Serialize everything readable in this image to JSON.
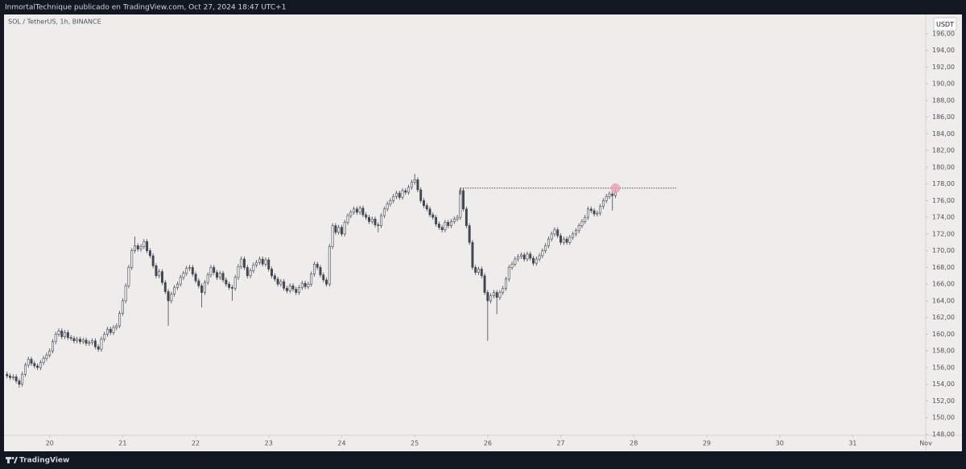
{
  "header": {
    "title": "InmortalTechnique publicado en TradingView.com, Oct 27, 2024 18:47 UTC+1"
  },
  "footer": {
    "brand": "TradingView"
  },
  "chart_data": {
    "type": "candlestick",
    "title": "SOL / TetherUS, 1h, BINANCE",
    "currency": "USDT",
    "up_color": "#f4f4f4",
    "down_color": "#434651",
    "outline_color": "#434651",
    "xlim": [
      -1,
      302
    ],
    "ylim": [
      147.9,
      198.3
    ],
    "xticks": [
      {
        "value": 14,
        "label": "20"
      },
      {
        "value": 38,
        "label": "21"
      },
      {
        "value": 62,
        "label": "22"
      },
      {
        "value": 86,
        "label": "23"
      },
      {
        "value": 110,
        "label": "24"
      },
      {
        "value": 134,
        "label": "25"
      },
      {
        "value": 158,
        "label": "26"
      },
      {
        "value": 182,
        "label": "27"
      },
      {
        "value": 206,
        "label": "28"
      },
      {
        "value": 230,
        "label": "29"
      },
      {
        "value": 254,
        "label": "30"
      },
      {
        "value": 278,
        "label": "31"
      },
      {
        "value": 302,
        "label": "Nov"
      }
    ],
    "yticks": [
      {
        "value": 148,
        "label": "148,00"
      },
      {
        "value": 150,
        "label": "150,00"
      },
      {
        "value": 152,
        "label": "152,00"
      },
      {
        "value": 154,
        "label": "154,00"
      },
      {
        "value": 156,
        "label": "156,00"
      },
      {
        "value": 158,
        "label": "158,00"
      },
      {
        "value": 160,
        "label": "160,00"
      },
      {
        "value": 162,
        "label": "162,00"
      },
      {
        "value": 164,
        "label": "164,00"
      },
      {
        "value": 166,
        "label": "166,00"
      },
      {
        "value": 168,
        "label": "168,00"
      },
      {
        "value": 170,
        "label": "170,00"
      },
      {
        "value": 172,
        "label": "172,00"
      },
      {
        "value": 174,
        "label": "174,00"
      },
      {
        "value": 176,
        "label": "176,00"
      },
      {
        "value": 178,
        "label": "178,00"
      },
      {
        "value": 180,
        "label": "180,00"
      },
      {
        "value": 182,
        "label": "182,00"
      },
      {
        "value": 184,
        "label": "184,00"
      },
      {
        "value": 186,
        "label": "186,00"
      },
      {
        "value": 188,
        "label": "188,00"
      },
      {
        "value": 190,
        "label": "190,00"
      },
      {
        "value": 192,
        "label": "192,00"
      },
      {
        "value": 194,
        "label": "194,00"
      },
      {
        "value": 196,
        "label": "196,00"
      }
    ],
    "hline": {
      "y": 177.5,
      "x": [
        149,
        220
      ],
      "color": "#131722"
    },
    "marker": {
      "x": 200,
      "y": 177.5,
      "color": "#e8a0b4"
    },
    "candles": [
      [
        155.2,
        155.5,
        154.7,
        155.0
      ],
      [
        155.0,
        155.3,
        154.5,
        154.8
      ],
      [
        154.8,
        155.2,
        154.5,
        154.9
      ],
      [
        154.9,
        155.2,
        154.1,
        154.4
      ],
      [
        154.4,
        154.7,
        153.6,
        154.0
      ],
      [
        154.0,
        155.5,
        153.7,
        155.2
      ],
      [
        155.2,
        156.6,
        154.9,
        156.3
      ],
      [
        156.3,
        157.3,
        156.0,
        157.0
      ],
      [
        157.0,
        157.3,
        156.2,
        156.5
      ],
      [
        156.5,
        156.8,
        155.9,
        156.2
      ],
      [
        156.2,
        156.5,
        155.7,
        156.0
      ],
      [
        156.0,
        156.9,
        155.7,
        156.6
      ],
      [
        156.6,
        157.4,
        156.3,
        157.1
      ],
      [
        157.1,
        157.8,
        156.8,
        157.5
      ],
      [
        157.5,
        158.3,
        157.2,
        158.0
      ],
      [
        158.0,
        159.4,
        157.7,
        159.1
      ],
      [
        159.1,
        160.3,
        158.8,
        160.0
      ],
      [
        160.0,
        160.7,
        159.7,
        160.4
      ],
      [
        160.4,
        160.7,
        159.4,
        159.7
      ],
      [
        159.7,
        160.5,
        159.4,
        160.2
      ],
      [
        160.2,
        160.5,
        159.3,
        159.6
      ],
      [
        159.6,
        159.9,
        159.2,
        159.5
      ],
      [
        159.5,
        159.8,
        158.9,
        159.2
      ],
      [
        159.2,
        159.7,
        158.9,
        159.4
      ],
      [
        159.4,
        159.7,
        158.8,
        159.1
      ],
      [
        159.1,
        159.6,
        158.8,
        159.3
      ],
      [
        159.3,
        159.6,
        158.6,
        158.9
      ],
      [
        158.9,
        159.3,
        158.6,
        159.0
      ],
      [
        159.0,
        159.5,
        158.7,
        159.2
      ],
      [
        159.2,
        159.5,
        158.2,
        158.5
      ],
      [
        158.5,
        158.8,
        157.9,
        158.2
      ],
      [
        158.2,
        159.7,
        157.9,
        159.4
      ],
      [
        159.4,
        160.3,
        159.1,
        160.0
      ],
      [
        160.0,
        160.9,
        159.7,
        160.6
      ],
      [
        160.6,
        160.9,
        159.9,
        160.2
      ],
      [
        160.2,
        161.1,
        159.9,
        160.8
      ],
      [
        160.8,
        161.3,
        160.5,
        161.0
      ],
      [
        161.0,
        162.8,
        160.7,
        162.5
      ],
      [
        162.5,
        164.3,
        162.2,
        164.0
      ],
      [
        164.0,
        166.1,
        163.7,
        165.8
      ],
      [
        165.8,
        168.3,
        165.5,
        168.0
      ],
      [
        168.0,
        170.3,
        167.7,
        170.0
      ],
      [
        170.0,
        171.7,
        169.7,
        170.6
      ],
      [
        170.6,
        170.9,
        169.9,
        170.2
      ],
      [
        170.2,
        170.8,
        169.9,
        170.5
      ],
      [
        170.5,
        171.4,
        170.2,
        171.1
      ],
      [
        171.1,
        171.4,
        169.7,
        170.0
      ],
      [
        170.0,
        170.3,
        169.1,
        169.4
      ],
      [
        169.4,
        169.7,
        167.9,
        168.2
      ],
      [
        168.2,
        168.5,
        166.7,
        167.0
      ],
      [
        167.0,
        167.8,
        166.7,
        167.5
      ],
      [
        167.5,
        167.8,
        165.9,
        166.2
      ],
      [
        166.2,
        166.5,
        164.8,
        165.1
      ],
      [
        165.1,
        165.4,
        161.0,
        164.0
      ],
      [
        164.0,
        165.1,
        163.7,
        164.8
      ],
      [
        164.8,
        165.9,
        164.5,
        165.6
      ],
      [
        165.6,
        166.3,
        165.3,
        166.0
      ],
      [
        166.0,
        167.1,
        165.7,
        166.8
      ],
      [
        166.8,
        167.6,
        166.5,
        167.3
      ],
      [
        167.3,
        168.2,
        167.0,
        167.9
      ],
      [
        167.9,
        168.3,
        167.6,
        168.0
      ],
      [
        168.0,
        168.3,
        166.9,
        167.2
      ],
      [
        167.2,
        167.5,
        166.1,
        166.4
      ],
      [
        166.4,
        166.7,
        165.5,
        165.8
      ],
      [
        165.8,
        166.1,
        163.2,
        165.0
      ],
      [
        165.0,
        166.5,
        164.7,
        166.2
      ],
      [
        166.2,
        167.4,
        165.9,
        167.1
      ],
      [
        167.1,
        168.3,
        166.8,
        168.0
      ],
      [
        168.0,
        168.3,
        167.1,
        167.4
      ],
      [
        167.4,
        167.7,
        166.5,
        166.8
      ],
      [
        166.8,
        167.6,
        166.5,
        167.3
      ],
      [
        167.3,
        167.6,
        166.2,
        166.5
      ],
      [
        166.5,
        166.8,
        165.7,
        166.0
      ],
      [
        166.0,
        166.3,
        165.3,
        165.6
      ],
      [
        165.6,
        165.9,
        164.0,
        165.5
      ],
      [
        165.5,
        167.1,
        165.2,
        166.8
      ],
      [
        166.8,
        168.4,
        166.5,
        168.1
      ],
      [
        168.1,
        169.3,
        167.8,
        169.0
      ],
      [
        169.0,
        169.3,
        167.7,
        168.0
      ],
      [
        168.0,
        168.3,
        166.7,
        167.0
      ],
      [
        167.0,
        167.9,
        166.7,
        167.6
      ],
      [
        167.6,
        168.6,
        167.3,
        168.3
      ],
      [
        168.3,
        168.9,
        168.0,
        168.6
      ],
      [
        168.6,
        169.3,
        168.3,
        169.0
      ],
      [
        169.0,
        169.3,
        168.1,
        168.4
      ],
      [
        168.4,
        169.2,
        168.1,
        168.9
      ],
      [
        168.9,
        169.2,
        167.5,
        167.8
      ],
      [
        167.8,
        168.1,
        166.7,
        167.0
      ],
      [
        167.0,
        167.3,
        166.3,
        166.6
      ],
      [
        166.6,
        166.9,
        165.7,
        166.0
      ],
      [
        166.0,
        166.6,
        165.7,
        166.3
      ],
      [
        166.3,
        166.6,
        165.2,
        165.5
      ],
      [
        165.5,
        165.8,
        164.9,
        165.2
      ],
      [
        165.2,
        166.1,
        164.9,
        165.8
      ],
      [
        165.8,
        166.1,
        165.1,
        165.4
      ],
      [
        165.4,
        165.7,
        164.7,
        165.0
      ],
      [
        165.0,
        165.9,
        164.7,
        165.6
      ],
      [
        165.6,
        166.4,
        165.3,
        166.1
      ],
      [
        166.1,
        166.4,
        165.4,
        165.7
      ],
      [
        165.7,
        166.3,
        165.4,
        166.0
      ],
      [
        166.0,
        167.5,
        165.7,
        167.2
      ],
      [
        167.2,
        168.7,
        166.9,
        168.4
      ],
      [
        168.4,
        168.7,
        167.7,
        168.0
      ],
      [
        168.0,
        168.3,
        166.8,
        167.1
      ],
      [
        167.1,
        167.4,
        166.2,
        166.5
      ],
      [
        166.5,
        166.8,
        165.7,
        166.0
      ],
      [
        166.0,
        170.8,
        165.7,
        170.5
      ],
      [
        170.5,
        173.3,
        170.2,
        173.0
      ],
      [
        173.0,
        173.3,
        171.9,
        172.2
      ],
      [
        172.2,
        173.1,
        171.9,
        172.8
      ],
      [
        172.8,
        173.1,
        171.7,
        172.0
      ],
      [
        172.0,
        173.7,
        171.7,
        173.4
      ],
      [
        173.4,
        174.5,
        173.1,
        174.2
      ],
      [
        174.2,
        174.9,
        173.9,
        174.6
      ],
      [
        174.6,
        175.3,
        174.3,
        175.0
      ],
      [
        175.0,
        175.3,
        174.3,
        174.6
      ],
      [
        174.6,
        175.4,
        174.3,
        175.1
      ],
      [
        175.1,
        175.4,
        174.0,
        174.3
      ],
      [
        174.3,
        174.6,
        173.7,
        174.0
      ],
      [
        174.0,
        174.3,
        173.2,
        173.5
      ],
      [
        173.5,
        174.1,
        173.2,
        173.8
      ],
      [
        173.8,
        174.1,
        172.8,
        173.1
      ],
      [
        173.1,
        173.4,
        172.2,
        173.0
      ],
      [
        173.0,
        174.5,
        172.7,
        174.2
      ],
      [
        174.2,
        175.3,
        173.9,
        175.0
      ],
      [
        175.0,
        175.9,
        174.7,
        175.6
      ],
      [
        175.6,
        176.3,
        175.3,
        176.0
      ],
      [
        176.0,
        176.8,
        175.7,
        176.5
      ],
      [
        176.5,
        177.2,
        176.2,
        176.9
      ],
      [
        176.9,
        177.2,
        176.1,
        176.4
      ],
      [
        176.4,
        177.5,
        176.1,
        177.2
      ],
      [
        177.2,
        177.5,
        176.7,
        177.0
      ],
      [
        177.0,
        177.9,
        176.7,
        177.6
      ],
      [
        177.6,
        178.5,
        177.3,
        178.2
      ],
      [
        178.2,
        179.2,
        177.9,
        178.5
      ],
      [
        178.5,
        178.8,
        177.0,
        177.3
      ],
      [
        177.3,
        177.6,
        175.7,
        176.0
      ],
      [
        176.0,
        176.3,
        175.1,
        175.4
      ],
      [
        175.4,
        175.7,
        174.7,
        175.0
      ],
      [
        175.0,
        175.3,
        174.0,
        174.3
      ],
      [
        174.3,
        174.6,
        173.7,
        174.0
      ],
      [
        174.0,
        174.3,
        172.9,
        173.2
      ],
      [
        173.2,
        173.5,
        172.5,
        172.8
      ],
      [
        172.8,
        173.1,
        172.2,
        172.5
      ],
      [
        172.5,
        173.7,
        172.2,
        173.4
      ],
      [
        173.4,
        173.7,
        172.7,
        173.0
      ],
      [
        173.0,
        173.8,
        172.7,
        173.5
      ],
      [
        173.5,
        174.1,
        173.2,
        173.8
      ],
      [
        173.8,
        174.3,
        173.5,
        174.0
      ],
      [
        174.0,
        177.5,
        173.7,
        177.2
      ],
      [
        177.2,
        177.5,
        174.7,
        175.0
      ],
      [
        175.0,
        175.3,
        172.7,
        173.0
      ],
      [
        173.0,
        173.3,
        170.7,
        171.0
      ],
      [
        171.0,
        171.3,
        167.7,
        168.0
      ],
      [
        168.0,
        168.3,
        167.1,
        167.4
      ],
      [
        167.4,
        168.1,
        167.1,
        167.8
      ],
      [
        167.8,
        168.1,
        166.7,
        167.0
      ],
      [
        167.0,
        167.3,
        164.7,
        165.0
      ],
      [
        165.0,
        165.3,
        159.2,
        164.0
      ],
      [
        164.0,
        164.9,
        163.7,
        164.6
      ],
      [
        164.6,
        165.3,
        164.3,
        165.0
      ],
      [
        165.0,
        165.3,
        162.4,
        164.4
      ],
      [
        164.4,
        165.3,
        164.1,
        165.0
      ],
      [
        165.0,
        165.8,
        164.7,
        165.5
      ],
      [
        165.5,
        166.9,
        165.2,
        166.6
      ],
      [
        166.6,
        168.3,
        166.3,
        168.0
      ],
      [
        168.0,
        168.7,
        167.7,
        168.4
      ],
      [
        168.4,
        169.3,
        168.1,
        169.0
      ],
      [
        169.0,
        169.6,
        168.7,
        169.3
      ],
      [
        169.3,
        169.8,
        169.0,
        169.5
      ],
      [
        169.5,
        169.8,
        168.7,
        169.0
      ],
      [
        169.0,
        169.9,
        168.7,
        169.6
      ],
      [
        169.6,
        169.9,
        168.8,
        169.1
      ],
      [
        169.1,
        169.4,
        168.2,
        168.5
      ],
      [
        168.5,
        169.3,
        168.2,
        169.0
      ],
      [
        169.0,
        169.7,
        168.7,
        169.4
      ],
      [
        169.4,
        170.3,
        169.1,
        170.0
      ],
      [
        170.0,
        170.9,
        169.7,
        170.6
      ],
      [
        170.6,
        171.7,
        170.3,
        171.4
      ],
      [
        171.4,
        172.3,
        171.1,
        172.0
      ],
      [
        172.0,
        172.8,
        171.7,
        172.5
      ],
      [
        172.5,
        172.8,
        171.5,
        171.8
      ],
      [
        171.8,
        172.1,
        170.7,
        171.0
      ],
      [
        171.0,
        171.7,
        170.7,
        171.4
      ],
      [
        171.4,
        171.7,
        170.7,
        171.0
      ],
      [
        171.0,
        171.9,
        170.7,
        171.6
      ],
      [
        171.6,
        172.3,
        171.3,
        172.0
      ],
      [
        172.0,
        172.7,
        171.7,
        172.4
      ],
      [
        172.4,
        173.3,
        172.1,
        173.0
      ],
      [
        173.0,
        173.8,
        172.7,
        173.5
      ],
      [
        173.5,
        174.3,
        173.2,
        174.0
      ],
      [
        174.0,
        175.3,
        173.7,
        175.0
      ],
      [
        175.0,
        175.3,
        174.5,
        174.8
      ],
      [
        174.8,
        175.1,
        174.1,
        174.4
      ],
      [
        174.4,
        174.8,
        174.1,
        174.5
      ],
      [
        174.5,
        175.6,
        174.2,
        175.3
      ],
      [
        175.3,
        176.3,
        175.0,
        176.0
      ],
      [
        176.0,
        176.8,
        175.7,
        176.5
      ],
      [
        176.5,
        177.1,
        176.2,
        176.8
      ],
      [
        176.8,
        177.1,
        174.8,
        176.6
      ],
      [
        176.6,
        177.3,
        176.3,
        177.0
      ]
    ]
  }
}
